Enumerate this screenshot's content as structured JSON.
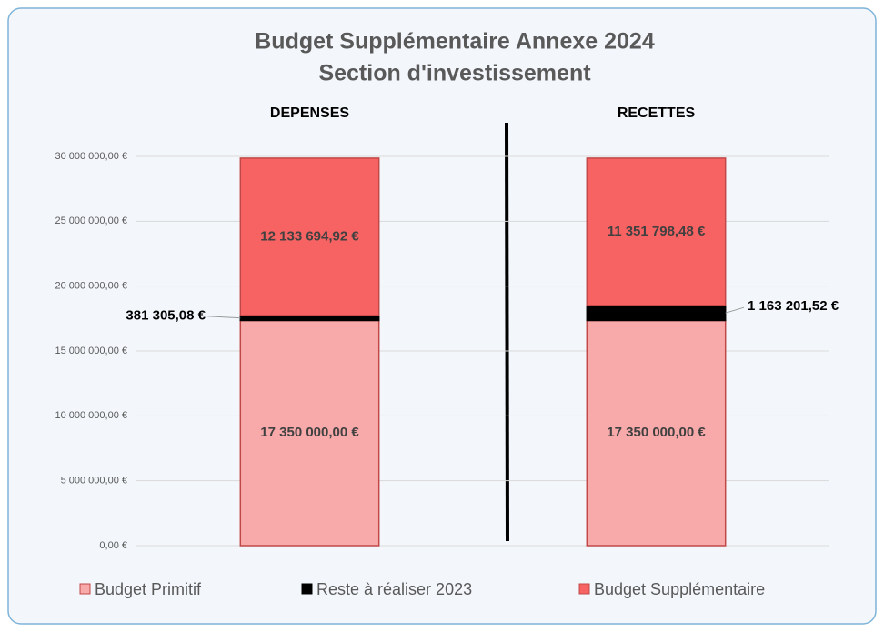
{
  "chart_data": {
    "type": "stacked_bar",
    "title": "Budget Supplémentaire Annexe 2024",
    "subtitle": "Section d'investissement",
    "categories": [
      "DEPENSES",
      "RECETTES"
    ],
    "series": [
      {
        "name": "Budget Primitif",
        "color": "#f7aaa9",
        "values": [
          17350000,
          17350000
        ],
        "value_labels": [
          "17 350 000,00 €",
          "17 350 000,00 €"
        ]
      },
      {
        "name": "Reste à réaliser 2023",
        "color": "#000000",
        "values": [
          381305.08,
          1163201.52
        ],
        "value_labels": [
          "381 305,08 €",
          "1 163 201,52 €"
        ]
      },
      {
        "name": "Budget Supplémentaire",
        "color": "#f76363",
        "values": [
          12133694.92,
          11351798.48
        ],
        "value_labels": [
          "12 133 694,92 €",
          "11 351 798,48 €"
        ]
      }
    ],
    "ylim": [
      0,
      30000000
    ],
    "yticks": [
      {
        "value": 0,
        "label": "0,00 €"
      },
      {
        "value": 5000000,
        "label": "5 000 000,00 €"
      },
      {
        "value": 10000000,
        "label": "10 000 000,00 €"
      },
      {
        "value": 15000000,
        "label": "15 000 000,00 €"
      },
      {
        "value": 20000000,
        "label": "20 000 000,00 €"
      },
      {
        "value": 25000000,
        "label": "25 000 000,00 €"
      },
      {
        "value": 30000000,
        "label": "30 000 000,00 €"
      }
    ],
    "grid": true,
    "legend": "bottom"
  }
}
